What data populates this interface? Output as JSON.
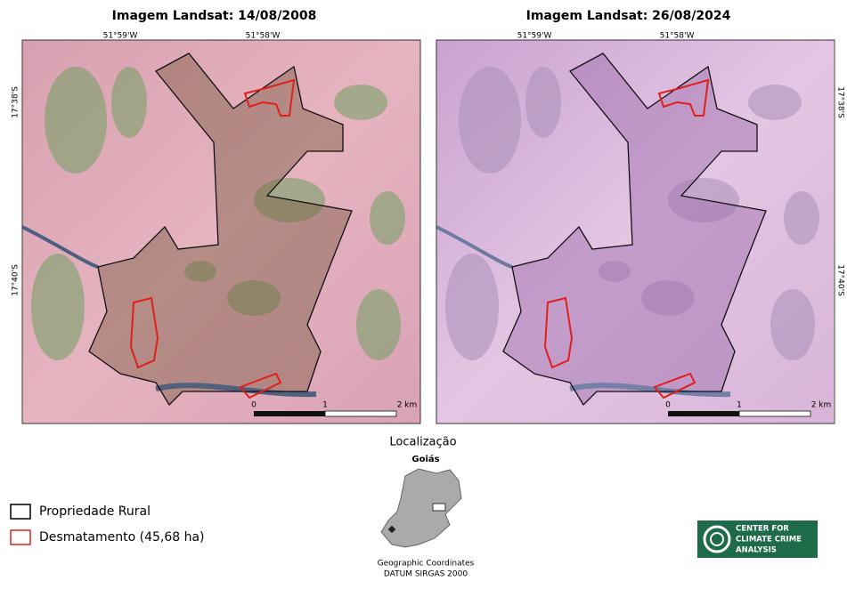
{
  "panels": [
    {
      "title": "Imagem Landsat: 14/08/2008",
      "x_labels": [
        "51°59'W",
        "51°58'W"
      ],
      "y_labels": [
        "17°38'S",
        "17°40'S"
      ],
      "scale_labels": [
        "0",
        "1",
        "2 km"
      ]
    },
    {
      "title": "Imagem Landsat: 26/08/2024",
      "x_labels": [
        "51°59'W",
        "51°58'W"
      ],
      "y_labels": [
        "17°38'S",
        "17°40'S"
      ],
      "scale_labels": [
        "0",
        "1",
        "2 km"
      ]
    }
  ],
  "location": {
    "title": "Localização",
    "state": "Goiás",
    "notes": [
      "Geographic Coordinates",
      "DATUM SIRGAS 2000"
    ]
  },
  "legend": [
    {
      "label": "Propriedade Rural",
      "color": "#000000"
    },
    {
      "label": "Desmatamento (45,68 ha)",
      "color": "#e0201b"
    }
  ],
  "logo": {
    "lines": [
      "CENTER FOR",
      "CLIMATE CRIME",
      "ANALYSIS"
    ]
  }
}
